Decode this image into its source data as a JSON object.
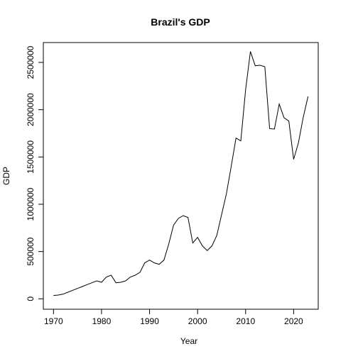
{
  "chart_data": {
    "type": "line",
    "title": "Brazil's GDP",
    "xlabel": "Year",
    "ylabel": "GDP",
    "x": [
      1970,
      1971,
      1972,
      1973,
      1974,
      1975,
      1976,
      1977,
      1978,
      1979,
      1980,
      1981,
      1982,
      1983,
      1984,
      1985,
      1986,
      1987,
      1988,
      1989,
      1990,
      1991,
      1992,
      1993,
      1994,
      1995,
      1996,
      1997,
      1998,
      1999,
      2000,
      2001,
      2002,
      2003,
      2004,
      2005,
      2006,
      2007,
      2008,
      2009,
      2010,
      2011,
      2012,
      2013,
      2014,
      2015,
      2016,
      2017,
      2018,
      2019,
      2020,
      2021,
      2022,
      2023
    ],
    "series": [
      {
        "name": "GDP",
        "color": "#000000",
        "values": [
          35000,
          40000,
          50000,
          70000,
          90000,
          110000,
          130000,
          150000,
          170000,
          190000,
          175000,
          230000,
          250000,
          170000,
          175000,
          190000,
          230000,
          250000,
          280000,
          380000,
          410000,
          380000,
          365000,
          410000,
          580000,
          780000,
          850000,
          880000,
          860000,
          590000,
          650000,
          560000,
          510000,
          560000,
          670000,
          890000,
          1110000,
          1400000,
          1700000,
          1670000,
          2210000,
          2616000,
          2465000,
          2470000,
          2455000,
          1800000,
          1795000,
          2060000,
          1915000,
          1880000,
          1475000,
          1650000,
          1920000,
          2140000
        ]
      }
    ],
    "xlim": [
      1967.88,
      2025.12
    ],
    "xticks": [
      1970,
      1980,
      1990,
      2000,
      2010,
      2020
    ],
    "ylim": [
      -110000,
      2710000
    ],
    "yticks": [
      0,
      500000,
      1000000,
      1500000,
      2000000,
      2500000
    ]
  }
}
